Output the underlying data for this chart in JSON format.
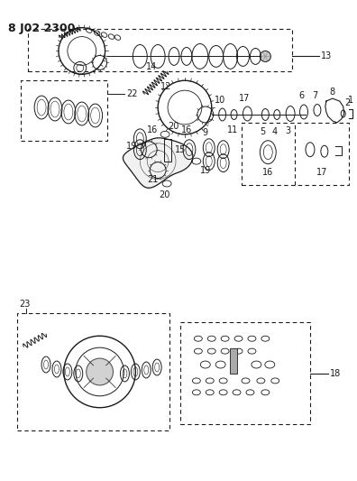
{
  "title": "8 J02 2300",
  "background_color": "#ffffff",
  "line_color": "#1a1a1a",
  "fig_width": 3.96,
  "fig_height": 5.33,
  "dpi": 100
}
